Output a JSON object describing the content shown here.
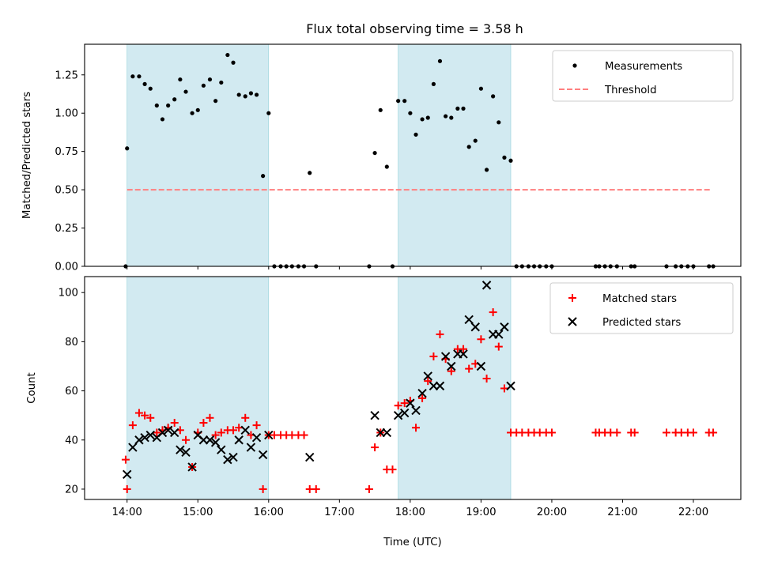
{
  "title": "Flux total observing time = 3.58 h",
  "colors": {
    "measurements": "#000000",
    "threshold": "#ff7f7f",
    "matched": "#ff0000",
    "predicted": "#000000",
    "span": "#add8e6"
  },
  "chart_data": [
    {
      "type": "scatter",
      "ylabel": "Matched/Predicted stars",
      "xlabel": "",
      "xlim": [
        13.4,
        22.67
      ],
      "ylim": [
        0,
        1.45
      ],
      "yticks": [
        0,
        0.25,
        0.5,
        0.75,
        1.0,
        1.25
      ],
      "ytick_labels": [
        "0.00",
        "0.25",
        "0.50",
        "0.75",
        "1.00",
        "1.25"
      ],
      "xticks": [
        14,
        15,
        16,
        17,
        18,
        19,
        20,
        21,
        22
      ],
      "shaded_spans": [
        [
          14.0,
          16.0
        ],
        [
          17.83,
          19.42
        ]
      ],
      "legend": {
        "placement": "upper right",
        "entries": [
          "Measurements",
          "Threshold"
        ]
      },
      "threshold": {
        "value": 0.5,
        "x_range": [
          14.0,
          22.25
        ]
      },
      "series": [
        {
          "name": "Measurements",
          "marker": "dot",
          "points": [
            [
              13.98,
              0.0
            ],
            [
              14.0,
              0.77
            ],
            [
              14.08,
              1.24
            ],
            [
              14.17,
              1.24
            ],
            [
              14.25,
              1.19
            ],
            [
              14.33,
              1.16
            ],
            [
              14.42,
              1.05
            ],
            [
              14.5,
              0.96
            ],
            [
              14.58,
              1.05
            ],
            [
              14.67,
              1.09
            ],
            [
              14.75,
              1.22
            ],
            [
              14.83,
              1.14
            ],
            [
              14.92,
              1.0
            ],
            [
              15.0,
              1.02
            ],
            [
              15.08,
              1.18
            ],
            [
              15.17,
              1.22
            ],
            [
              15.25,
              1.08
            ],
            [
              15.33,
              1.2
            ],
            [
              15.42,
              1.38
            ],
            [
              15.5,
              1.33
            ],
            [
              15.58,
              1.12
            ],
            [
              15.67,
              1.11
            ],
            [
              15.75,
              1.13
            ],
            [
              15.83,
              1.12
            ],
            [
              15.92,
              0.59
            ],
            [
              16.0,
              1.0
            ],
            [
              16.08,
              0.0
            ],
            [
              16.17,
              0.0
            ],
            [
              16.25,
              0.0
            ],
            [
              16.33,
              0.0
            ],
            [
              16.42,
              0.0
            ],
            [
              16.5,
              0.0
            ],
            [
              16.58,
              0.61
            ],
            [
              16.67,
              0.0
            ],
            [
              17.42,
              0.0
            ],
            [
              17.5,
              0.74
            ],
            [
              17.58,
              1.02
            ],
            [
              17.67,
              0.65
            ],
            [
              17.75,
              0.0
            ],
            [
              17.83,
              1.08
            ],
            [
              17.92,
              1.08
            ],
            [
              18.0,
              1.0
            ],
            [
              18.08,
              0.86
            ],
            [
              18.17,
              0.96
            ],
            [
              18.25,
              0.97
            ],
            [
              18.33,
              1.19
            ],
            [
              18.42,
              1.34
            ],
            [
              18.5,
              0.98
            ],
            [
              18.58,
              0.97
            ],
            [
              18.67,
              1.03
            ],
            [
              18.75,
              1.03
            ],
            [
              18.83,
              0.78
            ],
            [
              18.92,
              0.82
            ],
            [
              19.0,
              1.16
            ],
            [
              19.08,
              0.63
            ],
            [
              19.17,
              1.11
            ],
            [
              19.25,
              0.94
            ],
            [
              19.33,
              0.71
            ],
            [
              19.42,
              0.69
            ],
            [
              19.5,
              0.0
            ],
            [
              19.58,
              0.0
            ],
            [
              19.67,
              0.0
            ],
            [
              19.75,
              0.0
            ],
            [
              19.83,
              0.0
            ],
            [
              19.92,
              0.0
            ],
            [
              20.0,
              0.0
            ],
            [
              20.62,
              0.0
            ],
            [
              20.67,
              0.0
            ],
            [
              20.75,
              0.0
            ],
            [
              20.83,
              0.0
            ],
            [
              20.92,
              0.0
            ],
            [
              21.12,
              0.0
            ],
            [
              21.17,
              0.0
            ],
            [
              21.62,
              0.0
            ],
            [
              21.75,
              0.0
            ],
            [
              21.83,
              0.0
            ],
            [
              21.92,
              0.0
            ],
            [
              22.0,
              0.0
            ],
            [
              22.22,
              0.0
            ],
            [
              22.28,
              0.0
            ]
          ]
        }
      ]
    },
    {
      "type": "scatter",
      "ylabel": "Count",
      "xlabel": "Time (UTC)",
      "xlim": [
        13.4,
        22.67
      ],
      "ylim": [
        15.8,
        106.5
      ],
      "yticks": [
        20,
        40,
        60,
        80,
        100
      ],
      "ytick_labels": [
        "20",
        "40",
        "60",
        "80",
        "100"
      ],
      "xticks": [
        14,
        15,
        16,
        17,
        18,
        19,
        20,
        21,
        22
      ],
      "xtick_labels": [
        "14:00",
        "15:00",
        "16:00",
        "17:00",
        "18:00",
        "19:00",
        "20:00",
        "21:00",
        "22:00"
      ],
      "shaded_spans": [
        [
          14.0,
          16.0
        ],
        [
          17.83,
          19.42
        ]
      ],
      "legend": {
        "placement": "upper right",
        "entries": [
          "Matched stars",
          "Predicted stars"
        ]
      },
      "series": [
        {
          "name": "Matched stars",
          "marker": "plus",
          "points": [
            [
              13.98,
              32
            ],
            [
              14.0,
              20
            ],
            [
              14.08,
              46
            ],
            [
              14.17,
              51
            ],
            [
              14.25,
              50
            ],
            [
              14.33,
              49
            ],
            [
              14.42,
              43
            ],
            [
              14.5,
              44
            ],
            [
              14.58,
              45
            ],
            [
              14.67,
              47
            ],
            [
              14.75,
              44
            ],
            [
              14.83,
              40
            ],
            [
              14.92,
              29
            ],
            [
              15.0,
              43
            ],
            [
              15.08,
              47
            ],
            [
              15.17,
              49
            ],
            [
              15.25,
              42
            ],
            [
              15.33,
              43
            ],
            [
              15.42,
              44
            ],
            [
              15.5,
              44
            ],
            [
              15.58,
              45
            ],
            [
              15.67,
              49
            ],
            [
              15.75,
              42
            ],
            [
              15.83,
              46
            ],
            [
              15.92,
              20
            ],
            [
              16.0,
              42
            ],
            [
              16.08,
              42
            ],
            [
              16.17,
              42
            ],
            [
              16.25,
              42
            ],
            [
              16.33,
              42
            ],
            [
              16.42,
              42
            ],
            [
              16.5,
              42
            ],
            [
              16.58,
              20
            ],
            [
              16.67,
              20
            ],
            [
              17.42,
              20
            ],
            [
              17.5,
              37
            ],
            [
              17.58,
              43
            ],
            [
              17.67,
              28
            ],
            [
              17.75,
              28
            ],
            [
              17.83,
              54
            ],
            [
              17.92,
              55
            ],
            [
              18.0,
              56
            ],
            [
              18.08,
              45
            ],
            [
              18.17,
              57
            ],
            [
              18.25,
              64
            ],
            [
              18.33,
              74
            ],
            [
              18.42,
              83
            ],
            [
              18.5,
              73
            ],
            [
              18.58,
              68
            ],
            [
              18.67,
              77
            ],
            [
              18.75,
              77
            ],
            [
              18.83,
              69
            ],
            [
              18.92,
              71
            ],
            [
              19.0,
              81
            ],
            [
              19.08,
              65
            ],
            [
              19.17,
              92
            ],
            [
              19.25,
              78
            ],
            [
              19.33,
              61
            ],
            [
              19.42,
              43
            ],
            [
              19.5,
              43
            ],
            [
              19.58,
              43
            ],
            [
              19.67,
              43
            ],
            [
              19.75,
              43
            ],
            [
              19.83,
              43
            ],
            [
              19.92,
              43
            ],
            [
              20.0,
              43
            ],
            [
              20.62,
              43
            ],
            [
              20.67,
              43
            ],
            [
              20.75,
              43
            ],
            [
              20.83,
              43
            ],
            [
              20.92,
              43
            ],
            [
              21.12,
              43
            ],
            [
              21.17,
              43
            ],
            [
              21.62,
              43
            ],
            [
              21.75,
              43
            ],
            [
              21.83,
              43
            ],
            [
              21.92,
              43
            ],
            [
              22.0,
              43
            ],
            [
              22.22,
              43
            ],
            [
              22.28,
              43
            ]
          ]
        },
        {
          "name": "Predicted stars",
          "marker": "x",
          "points": [
            [
              14.0,
              26
            ],
            [
              14.08,
              37
            ],
            [
              14.17,
              40
            ],
            [
              14.25,
              41
            ],
            [
              14.33,
              42
            ],
            [
              14.42,
              41
            ],
            [
              14.5,
              43
            ],
            [
              14.58,
              44
            ],
            [
              14.67,
              43
            ],
            [
              14.75,
              36
            ],
            [
              14.83,
              35
            ],
            [
              14.92,
              29
            ],
            [
              15.0,
              42
            ],
            [
              15.08,
              40
            ],
            [
              15.17,
              40
            ],
            [
              15.25,
              39
            ],
            [
              15.33,
              36
            ],
            [
              15.42,
              32
            ],
            [
              15.5,
              33
            ],
            [
              15.58,
              40
            ],
            [
              15.67,
              44
            ],
            [
              15.75,
              37
            ],
            [
              15.83,
              41
            ],
            [
              15.92,
              34
            ],
            [
              16.0,
              42
            ],
            [
              16.58,
              33
            ],
            [
              17.5,
              50
            ],
            [
              17.58,
              43
            ],
            [
              17.67,
              43
            ],
            [
              17.83,
              50
            ],
            [
              17.92,
              51
            ],
            [
              18.0,
              55
            ],
            [
              18.08,
              52
            ],
            [
              18.17,
              59
            ],
            [
              18.25,
              66
            ],
            [
              18.33,
              62
            ],
            [
              18.42,
              62
            ],
            [
              18.5,
              74
            ],
            [
              18.58,
              70
            ],
            [
              18.67,
              75
            ],
            [
              18.75,
              75
            ],
            [
              18.83,
              89
            ],
            [
              18.92,
              86
            ],
            [
              19.0,
              70
            ],
            [
              19.08,
              103
            ],
            [
              19.17,
              83
            ],
            [
              19.25,
              83
            ],
            [
              19.33,
              86
            ],
            [
              19.42,
              62
            ]
          ]
        }
      ]
    }
  ]
}
